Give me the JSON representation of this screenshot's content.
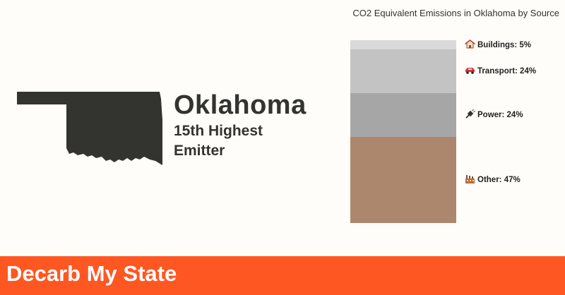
{
  "hero": {
    "state": "Oklahoma",
    "rank_line1": "15th Highest",
    "rank_line2": "Emitter"
  },
  "colors": {
    "map_fill": "#33332f",
    "footer_bg": "#ff5722",
    "buildings": "#d9d9d9",
    "transport": "#c3c3c3",
    "power": "#a6a6a6",
    "other": "#ad876d"
  },
  "chart_data": {
    "type": "bar",
    "stacked": true,
    "title": "CO2 Equivalent Emissions in Oklahoma by Source",
    "unit": "percent",
    "series": [
      {
        "name": "Buildings",
        "value": 5,
        "label": "Buildings: 5%",
        "icon": "house-icon",
        "color": "#d9d9d9"
      },
      {
        "name": "Transport",
        "value": 24,
        "label": "Transport: 24%",
        "icon": "car-icon",
        "color": "#c3c3c3"
      },
      {
        "name": "Power",
        "value": 24,
        "label": "Power: 24%",
        "icon": "plug-icon",
        "color": "#a6a6a6"
      },
      {
        "name": "Other",
        "value": 47,
        "label": "Other: 47%",
        "icon": "factory-icon",
        "color": "#ad876d"
      }
    ]
  },
  "footer": {
    "brand": "Decarb My State"
  }
}
